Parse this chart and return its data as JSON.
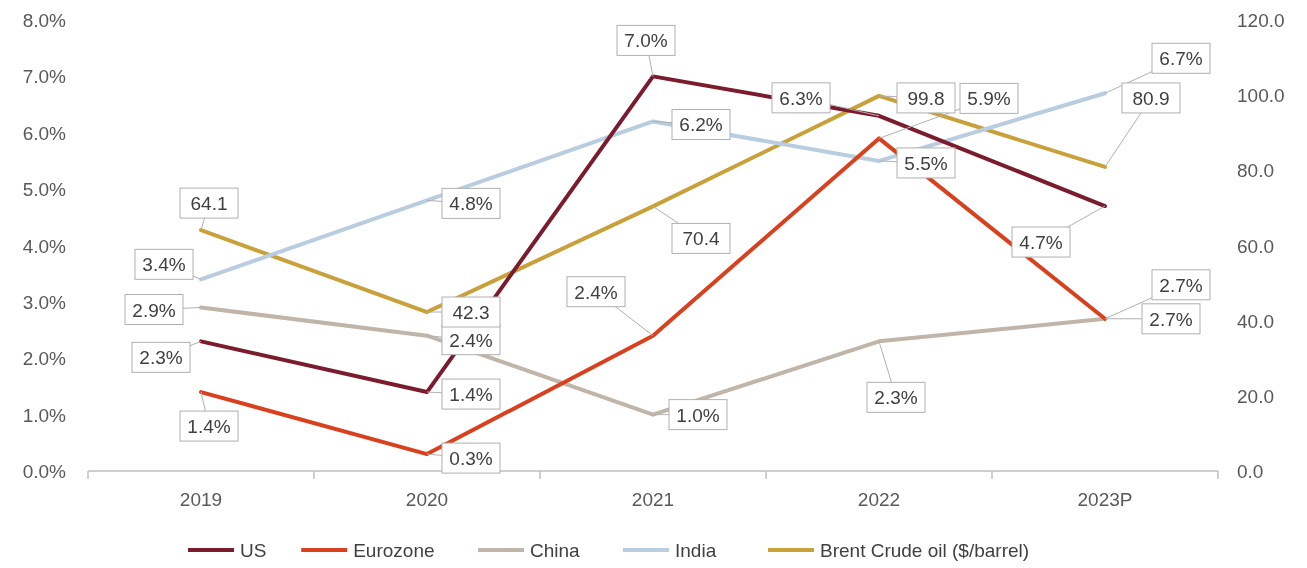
{
  "chart_data": {
    "type": "line",
    "categories": [
      "2019",
      "2020",
      "2021",
      "2022",
      "2023P"
    ],
    "series": [
      {
        "name": "US",
        "color": "#7b1c2e",
        "values": [
          2.3,
          1.4,
          7.0,
          6.3,
          4.7
        ],
        "value_labels": [
          "2.3%",
          "1.4%",
          "7.0%",
          "6.3%",
          "4.7%"
        ]
      },
      {
        "name": "Eurozone",
        "color": "#d9411e",
        "values": [
          1.4,
          0.3,
          2.4,
          5.9,
          2.7
        ],
        "value_labels": [
          "1.4%",
          "0.3%",
          "2.4%",
          "5.9%",
          "2.7%"
        ]
      },
      {
        "name": "China",
        "color": "#c0b5a8",
        "values": [
          2.9,
          2.4,
          1.0,
          2.3,
          2.7
        ],
        "value_labels": [
          "2.9%",
          "2.4%",
          "1.0%",
          "2.3%",
          "2.7%"
        ]
      },
      {
        "name": "India",
        "color": "#b9cde0",
        "values": [
          3.4,
          4.8,
          6.2,
          5.5,
          6.7
        ],
        "value_labels": [
          "3.4%",
          "4.8%",
          "6.2%",
          "5.5%",
          "6.7%"
        ]
      },
      {
        "name": "Brent Crude oil ($/barrel)",
        "color": "#c9a13a",
        "axis": "y2",
        "values": [
          64.1,
          42.3,
          70.4,
          99.8,
          80.9
        ],
        "value_labels": [
          "64.1",
          "42.3",
          "70.4",
          "99.8",
          "80.9"
        ]
      }
    ],
    "ylim": [
      0,
      8
    ],
    "yticks": [
      {
        "value": 0,
        "label": "0.0%"
      },
      {
        "value": 1,
        "label": "1.0%"
      },
      {
        "value": 2,
        "label": "2.0%"
      },
      {
        "value": 3,
        "label": "3.0%"
      },
      {
        "value": 4,
        "label": "4.0%"
      },
      {
        "value": 5,
        "label": "5.0%"
      },
      {
        "value": 6,
        "label": "6.0%"
      },
      {
        "value": 7,
        "label": "7.0%"
      },
      {
        "value": 8,
        "label": "8.0%"
      }
    ],
    "y2lim": [
      0,
      120
    ],
    "y2ticks": [
      {
        "value": 0,
        "label": "0.0"
      },
      {
        "value": 20,
        "label": "20.0"
      },
      {
        "value": 40,
        "label": "40.0"
      },
      {
        "value": 60,
        "label": "60.0"
      },
      {
        "value": 80,
        "label": "80.0"
      },
      {
        "value": 100,
        "label": "100.0"
      },
      {
        "value": 120,
        "label": "120.0"
      }
    ],
    "grid": false,
    "legend": "bottom",
    "marker": "none",
    "line_style": "solid"
  }
}
